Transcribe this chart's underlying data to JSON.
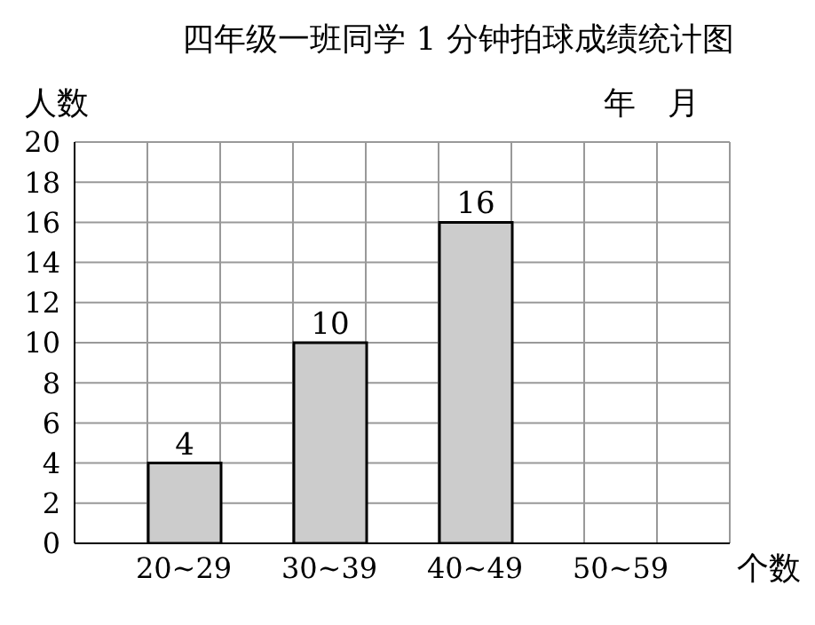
{
  "chart_data": {
    "type": "bar",
    "title": "四年级一班同学 1 分钟拍球成绩统计图",
    "xlabel": "个数",
    "ylabel": "人数",
    "annotations": [
      "年　月"
    ],
    "categories": [
      "20~29",
      "30~39",
      "40~49",
      "50~59"
    ],
    "values": [
      4,
      10,
      16,
      null
    ],
    "color": "#cccccc",
    "ylim": [
      0,
      20
    ],
    "yticks": [
      0,
      2,
      4,
      6,
      8,
      10,
      12,
      14,
      16,
      18,
      20
    ],
    "grid": true,
    "data_labels": true
  }
}
